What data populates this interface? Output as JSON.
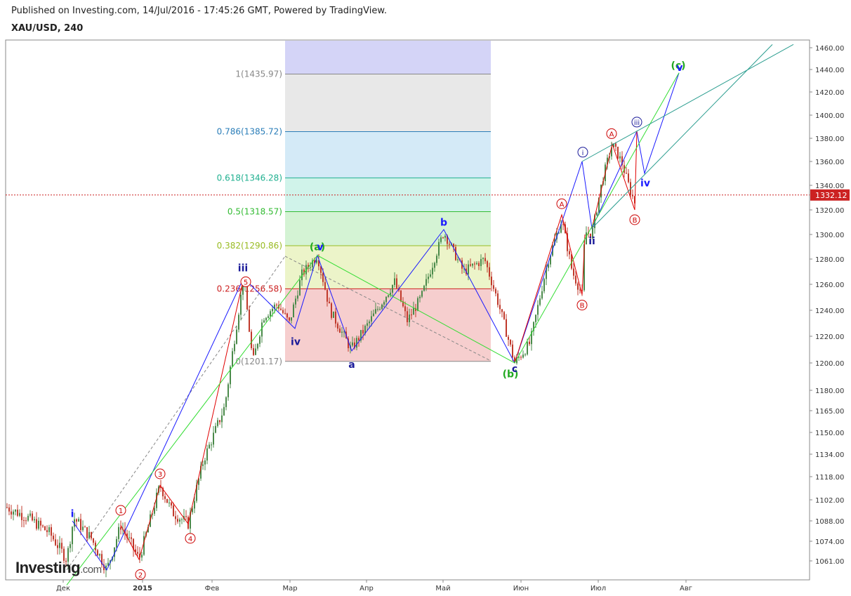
{
  "header": {
    "published": "Published on Investing.com, 14/Jul/2016 - 17:45:26 GMT, Powered by TradingView.",
    "symbol": "XAU/USD, 240"
  },
  "logo": {
    "main": "Investing",
    "suffix": ".com"
  },
  "colors": {
    "wave_blue": "#1a1aff",
    "wave_red": "#e00000",
    "wave_green": "#33dd33",
    "channel_teal": "#2a9d8f",
    "candle_up": "#4a8a4a",
    "candle_down": "#c0392b",
    "current_price_line": "#cc2222"
  },
  "chart_data": {
    "type": "candlestick",
    "symbol": "XAU/USD",
    "timeframe": "240",
    "current_price": "1332.12",
    "x_ticks": [
      "Дек",
      "2015",
      "Фев",
      "Мар",
      "Апр",
      "Май",
      "Июн",
      "Июл",
      "Авг"
    ],
    "y_ticks": [
      "1460.00",
      "1440.00",
      "1420.00",
      "1400.00",
      "1380.00",
      "1360.00",
      "1340.00",
      "1320.00",
      "1300.00",
      "1280.00",
      "1260.00",
      "1240.00",
      "1220.00",
      "1200.00",
      "1180.00",
      "1165.00",
      "1150.00",
      "1134.00",
      "1118.00",
      "1102.00",
      "1088.00",
      "1074.00",
      "1061.00"
    ],
    "y_tick_values": [
      1460,
      1440,
      1420,
      1400,
      1380,
      1360,
      1340,
      1320,
      1300,
      1280,
      1260,
      1240,
      1220,
      1200,
      1180,
      1165,
      1150,
      1134,
      1118,
      1102,
      1088,
      1074,
      1061
    ],
    "fib_levels": [
      {
        "label": "1(1435.97)",
        "value": 1435.97,
        "color": "#888888"
      },
      {
        "label": "0.786(1385.72)",
        "value": 1385.72,
        "color": "#2a7db8"
      },
      {
        "label": "0.618(1346.28)",
        "value": 1346.28,
        "color": "#20b090"
      },
      {
        "label": "0.5(1318.57)",
        "value": 1318.57,
        "color": "#33bb33"
      },
      {
        "label": "0.382(1290.86)",
        "value": 1290.86,
        "color": "#99bb22"
      },
      {
        "label": "0.236(1256.58)",
        "value": 1256.58,
        "color": "#cc2222"
      },
      {
        "label": "0(1201.17)",
        "value": 1201.17,
        "color": "#888888"
      }
    ],
    "wave_labels": [
      {
        "text": "i",
        "color": "#1a1aff",
        "circled": false
      },
      {
        "text": "iii",
        "color": "#1a1a99",
        "circled": false
      },
      {
        "text": "iv",
        "color": "#1a1a99",
        "circled": false
      },
      {
        "text": "(a)",
        "color": "#22aa22",
        "circled": false
      },
      {
        "text": "v",
        "color": "#1a1aff",
        "circled": false
      },
      {
        "text": "a",
        "color": "#1a1a99",
        "circled": false
      },
      {
        "text": "b",
        "color": "#1a1aff",
        "circled": false
      },
      {
        "text": "(b)",
        "color": "#22aa22",
        "circled": false
      },
      {
        "text": "c",
        "color": "#1a1a99",
        "circled": false
      },
      {
        "text": "i",
        "color": "#1a1a99",
        "circled": true
      },
      {
        "text": "ii",
        "color": "#1a1a99",
        "circled": false
      },
      {
        "text": "iii",
        "color": "#1a1a99",
        "circled": true
      },
      {
        "text": "iv",
        "color": "#1a1aff",
        "circled": false
      },
      {
        "text": "(c)",
        "color": "#22aa22",
        "circled": false
      },
      {
        "text": "v",
        "color": "#1a1aff",
        "circled": false
      },
      {
        "text": "1",
        "color": "#cc0000",
        "circled": true
      },
      {
        "text": "2",
        "color": "#cc0000",
        "circled": true
      },
      {
        "text": "3",
        "color": "#cc0000",
        "circled": true
      },
      {
        "text": "4",
        "color": "#cc0000",
        "circled": true
      },
      {
        "text": "5",
        "color": "#cc0000",
        "circled": true
      },
      {
        "text": "A",
        "color": "#cc0000",
        "circled": true
      },
      {
        "text": "B",
        "color": "#cc0000",
        "circled": true
      },
      {
        "text": "A",
        "color": "#cc0000",
        "circled": true
      },
      {
        "text": "B",
        "color": "#cc0000",
        "circled": true
      }
    ]
  }
}
